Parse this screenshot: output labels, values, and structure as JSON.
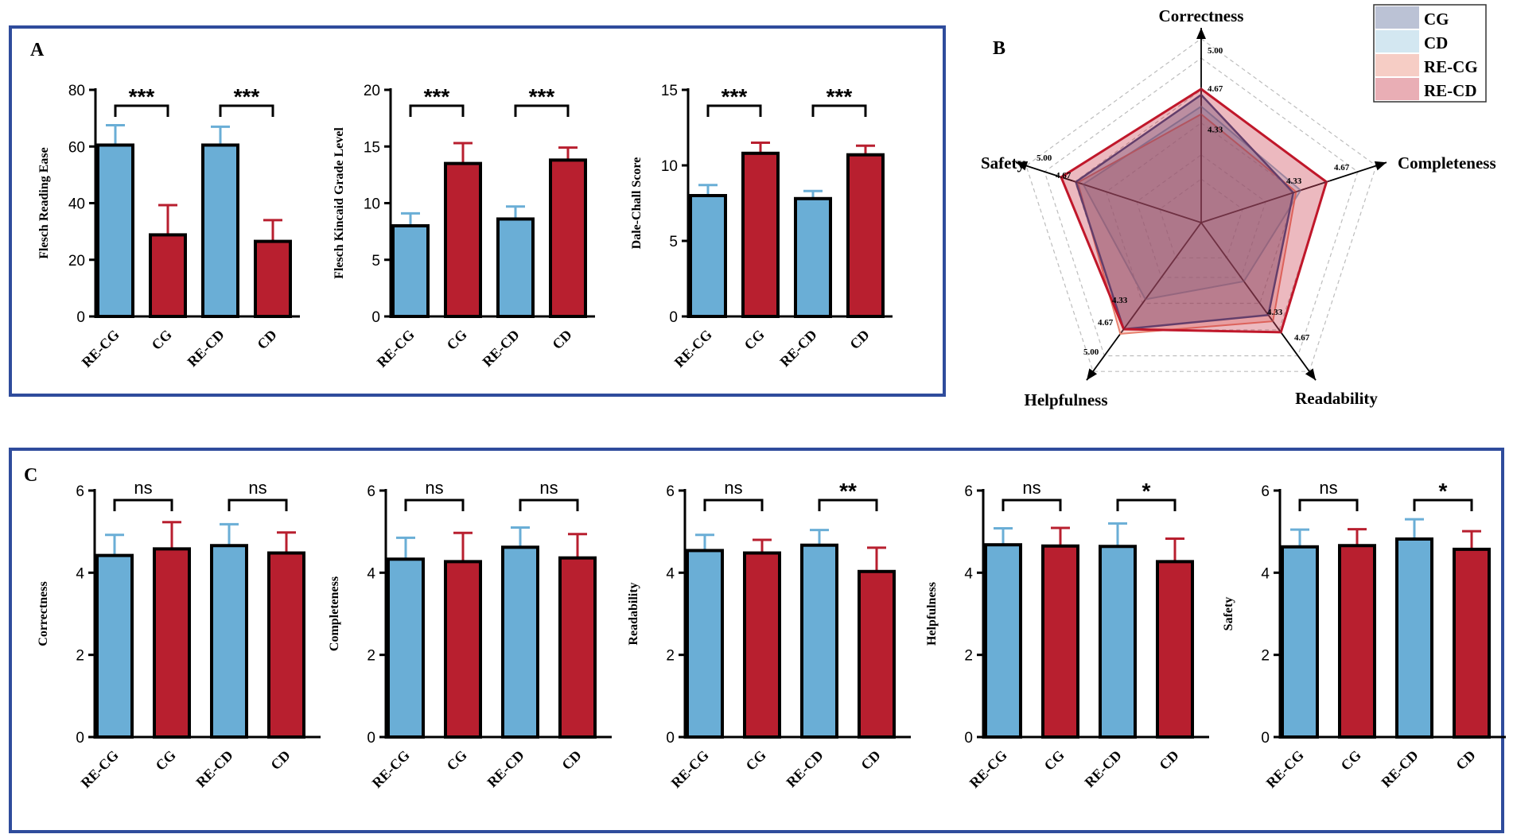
{
  "colors": {
    "blue": "#6aaed6",
    "red": "#b81f2f",
    "frame": "#2f4c9c",
    "radar_cg": "#3b4f87",
    "radar_cd": "#9ecae1",
    "radar_recg": "#e8826f",
    "radar_recd": "#c0172a"
  },
  "panel_a": {
    "label": "A",
    "charts": [
      {
        "type": "bar",
        "ylabel": "Flesch Reading Ease",
        "ylim": [
          0,
          80
        ],
        "yticks": [
          0,
          20,
          40,
          60,
          80
        ],
        "categories": [
          "RE-CG",
          "CG",
          "RE-CD",
          "CD"
        ],
        "values": [
          60.5,
          28.8,
          60.5,
          26.5
        ],
        "errors": [
          7.0,
          10.5,
          6.5,
          7.5
        ],
        "sig": [
          {
            "from": 0,
            "to": 1,
            "label": "***"
          },
          {
            "from": 2,
            "to": 3,
            "label": "***"
          }
        ]
      },
      {
        "type": "bar",
        "ylabel": "Flesch Kincaid Grade Level",
        "ylim": [
          0,
          20
        ],
        "yticks": [
          0,
          5,
          10,
          15,
          20
        ],
        "categories": [
          "RE-CG",
          "CG",
          "RE-CD",
          "CD"
        ],
        "values": [
          8.0,
          13.5,
          8.6,
          13.8
        ],
        "errors": [
          1.1,
          1.8,
          1.1,
          1.1
        ],
        "sig": [
          {
            "from": 0,
            "to": 1,
            "label": "***"
          },
          {
            "from": 2,
            "to": 3,
            "label": "***"
          }
        ]
      },
      {
        "type": "bar",
        "ylabel": "Dale-Chall Score",
        "ylim": [
          0,
          15
        ],
        "yticks": [
          0,
          5,
          10,
          15
        ],
        "categories": [
          "RE-CG",
          "CG",
          "RE-CD",
          "CD"
        ],
        "values": [
          8.0,
          10.8,
          7.8,
          10.7
        ],
        "errors": [
          0.7,
          0.7,
          0.5,
          0.6
        ],
        "sig": [
          {
            "from": 0,
            "to": 1,
            "label": "***"
          },
          {
            "from": 2,
            "to": 3,
            "label": "***"
          }
        ]
      }
    ]
  },
  "panel_b": {
    "label": "B",
    "chart_data": {
      "type": "radar",
      "axes": [
        "Correctness",
        "Completeness",
        "Readability",
        "Helpfulness",
        "Safety"
      ],
      "series": [
        {
          "name": "CG",
          "values": [
            4.62,
            4.3,
            4.48,
            4.66,
            4.66
          ]
        },
        {
          "name": "CD",
          "values": [
            4.5,
            4.38,
            4.05,
            4.28,
            4.58
          ]
        },
        {
          "name": "RE-CG",
          "values": [
            4.42,
            4.33,
            4.56,
            4.72,
            4.64
          ]
        },
        {
          "name": "RE-CD",
          "values": [
            4.68,
            4.66,
            4.7,
            4.66,
            4.82
          ]
        }
      ],
      "rings": [
        4.33,
        4.67,
        5.0
      ],
      "ring_labels": {
        "correctness": [
          "5.00",
          "4.67",
          "4.33"
        ],
        "completeness": [
          "4.33",
          "4.67"
        ],
        "readability": [
          "4.33",
          "4.67"
        ],
        "helpfulness": [
          "4.33",
          "4.67",
          "5.00"
        ],
        "safety": [
          "5.00",
          "4.67"
        ]
      },
      "legend": [
        "CG",
        "CD",
        "RE-CG",
        "RE-CD"
      ]
    }
  },
  "panel_c": {
    "label": "C",
    "charts": [
      {
        "type": "bar",
        "ylabel": "Correctness",
        "ylim": [
          0,
          6
        ],
        "yticks": [
          0,
          2,
          4,
          6
        ],
        "categories": [
          "RE-CG",
          "CG",
          "RE-CD",
          "CD"
        ],
        "values": [
          4.42,
          4.58,
          4.66,
          4.48
        ],
        "errors": [
          0.5,
          0.65,
          0.52,
          0.5
        ],
        "sig": [
          {
            "from": 0,
            "to": 1,
            "label": "ns"
          },
          {
            "from": 2,
            "to": 3,
            "label": "ns"
          }
        ]
      },
      {
        "type": "bar",
        "ylabel": "Completeness",
        "ylim": [
          0,
          6
        ],
        "yticks": [
          0,
          2,
          4,
          6
        ],
        "categories": [
          "RE-CG",
          "CG",
          "RE-CD",
          "CD"
        ],
        "values": [
          4.33,
          4.27,
          4.62,
          4.36
        ],
        "errors": [
          0.52,
          0.7,
          0.48,
          0.58
        ],
        "sig": [
          {
            "from": 0,
            "to": 1,
            "label": "ns"
          },
          {
            "from": 2,
            "to": 3,
            "label": "ns"
          }
        ]
      },
      {
        "type": "bar",
        "ylabel": "Readability",
        "ylim": [
          0,
          6
        ],
        "yticks": [
          0,
          2,
          4,
          6
        ],
        "categories": [
          "RE-CG",
          "CG",
          "RE-CD",
          "CD"
        ],
        "values": [
          4.54,
          4.48,
          4.67,
          4.03
        ],
        "errors": [
          0.38,
          0.32,
          0.37,
          0.58
        ],
        "sig": [
          {
            "from": 0,
            "to": 1,
            "label": "ns"
          },
          {
            "from": 2,
            "to": 3,
            "label": "**"
          }
        ]
      },
      {
        "type": "bar",
        "ylabel": "Helpfulness",
        "ylim": [
          0,
          6
        ],
        "yticks": [
          0,
          2,
          4,
          6
        ],
        "categories": [
          "RE-CG",
          "CG",
          "RE-CD",
          "CD"
        ],
        "values": [
          4.68,
          4.65,
          4.64,
          4.27
        ],
        "errors": [
          0.4,
          0.44,
          0.56,
          0.56
        ],
        "sig": [
          {
            "from": 0,
            "to": 1,
            "label": "ns"
          },
          {
            "from": 2,
            "to": 3,
            "label": "*"
          }
        ]
      },
      {
        "type": "bar",
        "ylabel": "Safety",
        "ylim": [
          0,
          6
        ],
        "yticks": [
          0,
          2,
          4,
          6
        ],
        "categories": [
          "RE-CG",
          "CG",
          "RE-CD",
          "CD"
        ],
        "values": [
          4.63,
          4.66,
          4.82,
          4.57
        ],
        "errors": [
          0.42,
          0.4,
          0.48,
          0.44
        ],
        "sig": [
          {
            "from": 0,
            "to": 1,
            "label": "ns"
          },
          {
            "from": 2,
            "to": 3,
            "label": "*"
          }
        ]
      }
    ]
  }
}
